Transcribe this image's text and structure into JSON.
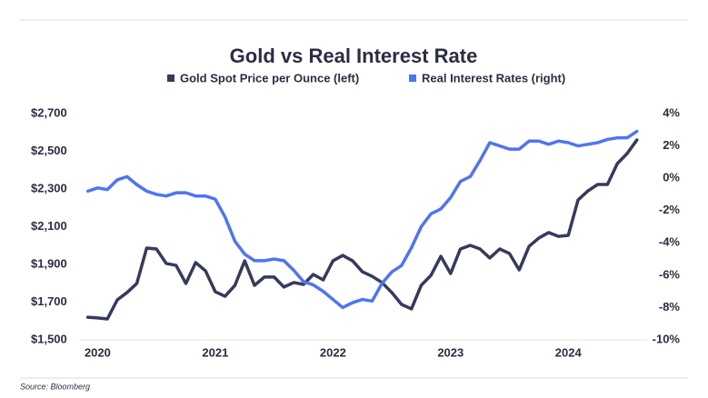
{
  "chart_data": {
    "type": "line",
    "title": "Gold vs Real Interest Rate",
    "source": "Source: Bloomberg",
    "x": [
      2019.917,
      2020,
      2020.083,
      2020.167,
      2020.25,
      2020.333,
      2020.417,
      2020.5,
      2020.583,
      2020.667,
      2020.75,
      2020.833,
      2020.917,
      2021,
      2021.083,
      2021.167,
      2021.25,
      2021.333,
      2021.417,
      2021.5,
      2021.583,
      2021.667,
      2021.75,
      2021.833,
      2021.917,
      2022,
      2022.083,
      2022.167,
      2022.25,
      2022.333,
      2022.417,
      2022.5,
      2022.583,
      2022.667,
      2022.75,
      2022.833,
      2022.917,
      2023,
      2023.083,
      2023.167,
      2023.25,
      2023.333,
      2023.417,
      2023.5,
      2023.583,
      2023.667,
      2023.75,
      2023.833,
      2023.917,
      2024,
      2024.083,
      2024.167,
      2024.25,
      2024.333,
      2024.417,
      2024.5,
      2024.583
    ],
    "xlim": [
      2019.85,
      2024.67
    ],
    "xticks": [
      2020,
      2021,
      2022,
      2023,
      2024
    ],
    "series": [
      {
        "name": "Gold Spot Price per Ounce (left)",
        "color": "#363a5b",
        "axis": "y",
        "values": [
          1620,
          1616,
          1611,
          1712,
          1751,
          1799,
          1987,
          1982,
          1905,
          1895,
          1799,
          1910,
          1866,
          1755,
          1731,
          1789,
          1919,
          1789,
          1833,
          1833,
          1780,
          1804,
          1794,
          1847,
          1818,
          1919,
          1948,
          1919,
          1861,
          1837,
          1804,
          1751,
          1688,
          1664,
          1789,
          1842,
          1943,
          1852,
          1982,
          2001,
          1982,
          1934,
          1982,
          1958,
          1871,
          1996,
          2040,
          2069,
          2049,
          2054,
          2242,
          2290,
          2324,
          2324,
          2435,
          2488,
          2560
        ]
      },
      {
        "name": "Real Interest Rates (right)",
        "color": "#4f74f2",
        "axis": "y2",
        "values": [
          -0.8,
          -0.6,
          -0.7,
          -0.1,
          0.1,
          -0.4,
          -0.8,
          -1.0,
          -1.1,
          -0.9,
          -0.9,
          -1.1,
          -1.1,
          -1.3,
          -2.4,
          -3.9,
          -4.7,
          -5.1,
          -5.1,
          -5.0,
          -5.1,
          -5.7,
          -6.4,
          -6.6,
          -7.0,
          -7.5,
          -8.0,
          -7.7,
          -7.5,
          -7.6,
          -6.5,
          -5.8,
          -5.4,
          -4.3,
          -3.0,
          -2.2,
          -1.9,
          -1.2,
          -0.2,
          0.1,
          1.1,
          2.2,
          2.0,
          1.8,
          1.8,
          2.3,
          2.3,
          2.1,
          2.3,
          2.2,
          2.0,
          2.1,
          2.2,
          2.4,
          2.5,
          2.5,
          2.9
        ]
      }
    ],
    "ylim": [
      1500,
      2700
    ],
    "yticks": [
      {
        "value": 1500,
        "label": "$1,500"
      },
      {
        "value": 1700,
        "label": "$1,700"
      },
      {
        "value": 1900,
        "label": "$1,900"
      },
      {
        "value": 2100,
        "label": "$2,100"
      },
      {
        "value": 2300,
        "label": "$2,300"
      },
      {
        "value": 2500,
        "label": "$2,500"
      },
      {
        "value": 2700,
        "label": "$2,700"
      }
    ],
    "y2lim": [
      -10,
      4
    ],
    "y2ticks": [
      {
        "value": -10,
        "label": "-10%"
      },
      {
        "value": -8,
        "label": "-8%"
      },
      {
        "value": -6,
        "label": "-6%"
      },
      {
        "value": -4,
        "label": "-4%"
      },
      {
        "value": -2,
        "label": "-2%"
      },
      {
        "value": 0,
        "label": "0%"
      },
      {
        "value": 2,
        "label": "2%"
      },
      {
        "value": 4,
        "label": "4%"
      }
    ]
  }
}
